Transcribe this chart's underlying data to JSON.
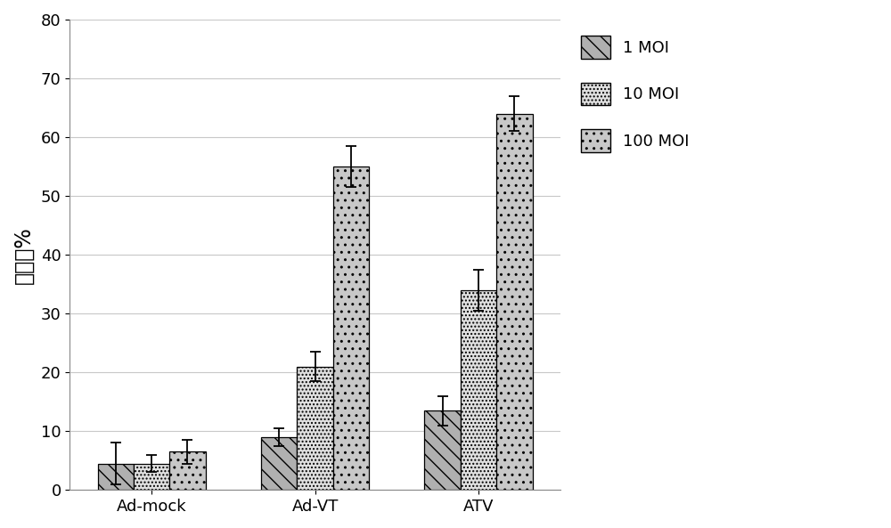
{
  "groups": [
    "Ad-mock",
    "Ad-VT",
    "ATV"
  ],
  "series": [
    "1 MOI",
    "10 MOI",
    "100 MOI"
  ],
  "values": [
    [
      4.5,
      4.5,
      6.5
    ],
    [
      9.0,
      21.0,
      55.0
    ],
    [
      13.5,
      34.0,
      64.0
    ]
  ],
  "errors": [
    [
      3.5,
      1.5,
      2.0
    ],
    [
      1.5,
      2.5,
      3.5
    ],
    [
      2.5,
      3.5,
      3.0
    ]
  ],
  "ylabel": "抑制率%",
  "ylim": [
    0,
    80
  ],
  "yticks": [
    0,
    10,
    20,
    30,
    40,
    50,
    60,
    70,
    80
  ],
  "bar_width": 0.22,
  "background_color": "#ffffff",
  "grid_color": "#c8c8c8",
  "legend_fontsize": 13,
  "tick_fontsize": 13,
  "ylabel_fontsize": 17
}
